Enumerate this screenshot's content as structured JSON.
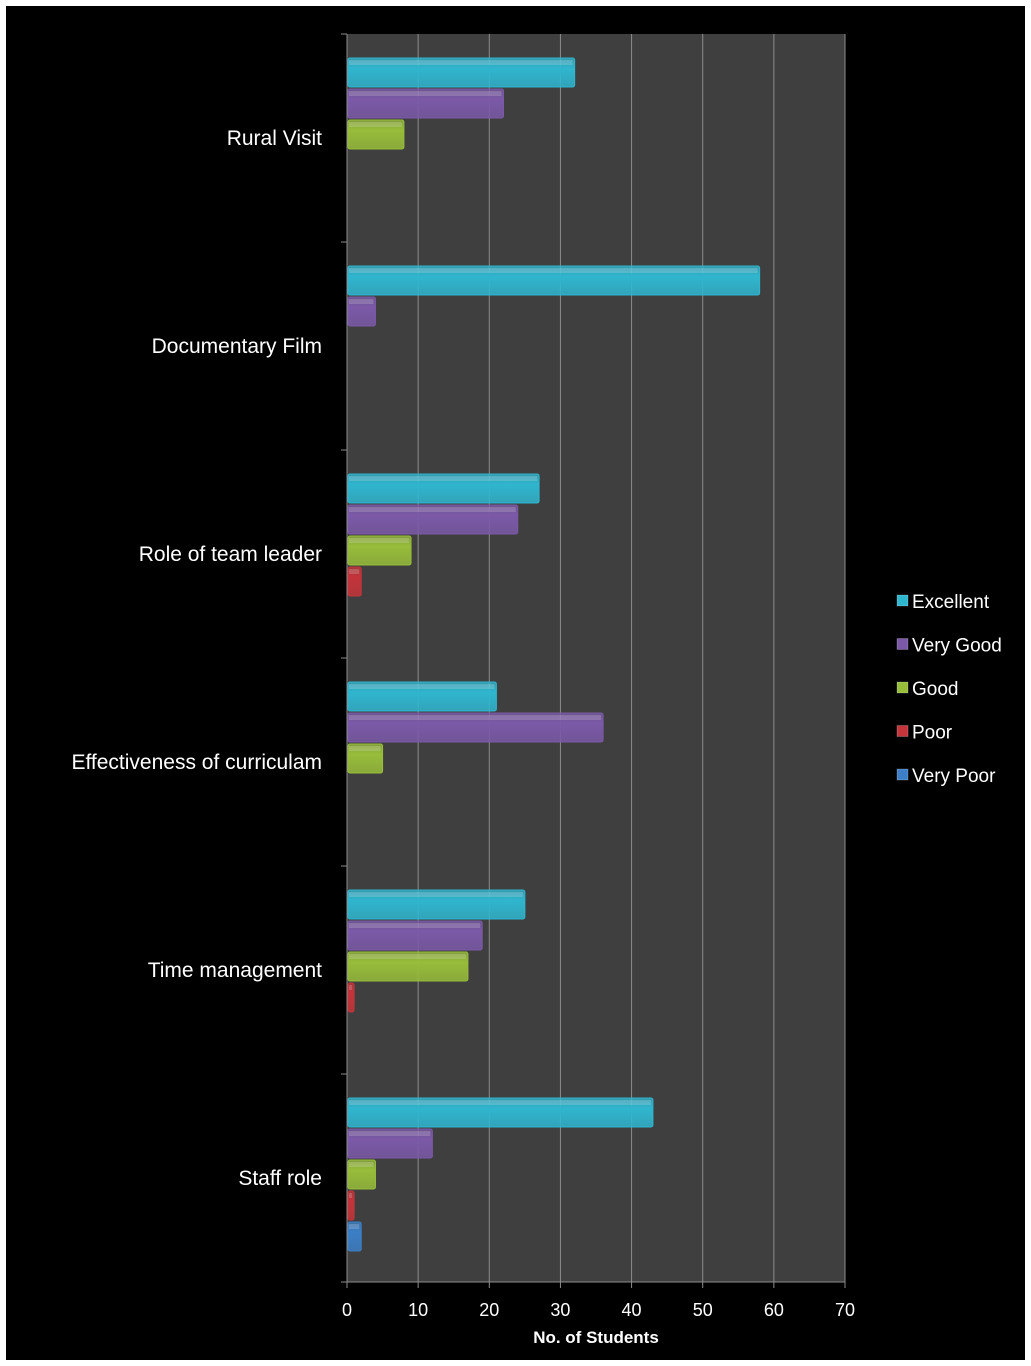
{
  "chart_data": {
    "type": "bar",
    "orientation": "horizontal",
    "categories": [
      "Rural Visit",
      "Documentary Film",
      "Role of team leader",
      "Effectiveness of curriculam",
      "Time management",
      "Staff role"
    ],
    "series": [
      {
        "name": "Excellent",
        "color": "#2fb6cf",
        "values": [
          32,
          58,
          27,
          21,
          25,
          43
        ]
      },
      {
        "name": "Very Good",
        "color": "#7b59a8",
        "values": [
          22,
          4,
          24,
          36,
          19,
          12
        ]
      },
      {
        "name": "Good",
        "color": "#97bd3a",
        "values": [
          8,
          0,
          9,
          5,
          17,
          4
        ]
      },
      {
        "name": "Poor",
        "color": "#c4343a",
        "values": [
          0,
          0,
          2,
          0,
          1,
          1
        ]
      },
      {
        "name": "Very Poor",
        "color": "#3c7fc6",
        "values": [
          0,
          0,
          0,
          0,
          0,
          2
        ]
      }
    ],
    "xlabel": "No. of Students",
    "ylabel": "",
    "title": "",
    "xlim": [
      0,
      70
    ],
    "xticks": [
      0,
      10,
      20,
      30,
      40,
      50,
      60,
      70
    ],
    "grid": true,
    "legend_position": "right",
    "colors": {
      "background": "#000000",
      "plot_area": "#3f3f3f",
      "gridline": "#8c8c8c",
      "text": "#ffffff"
    }
  }
}
